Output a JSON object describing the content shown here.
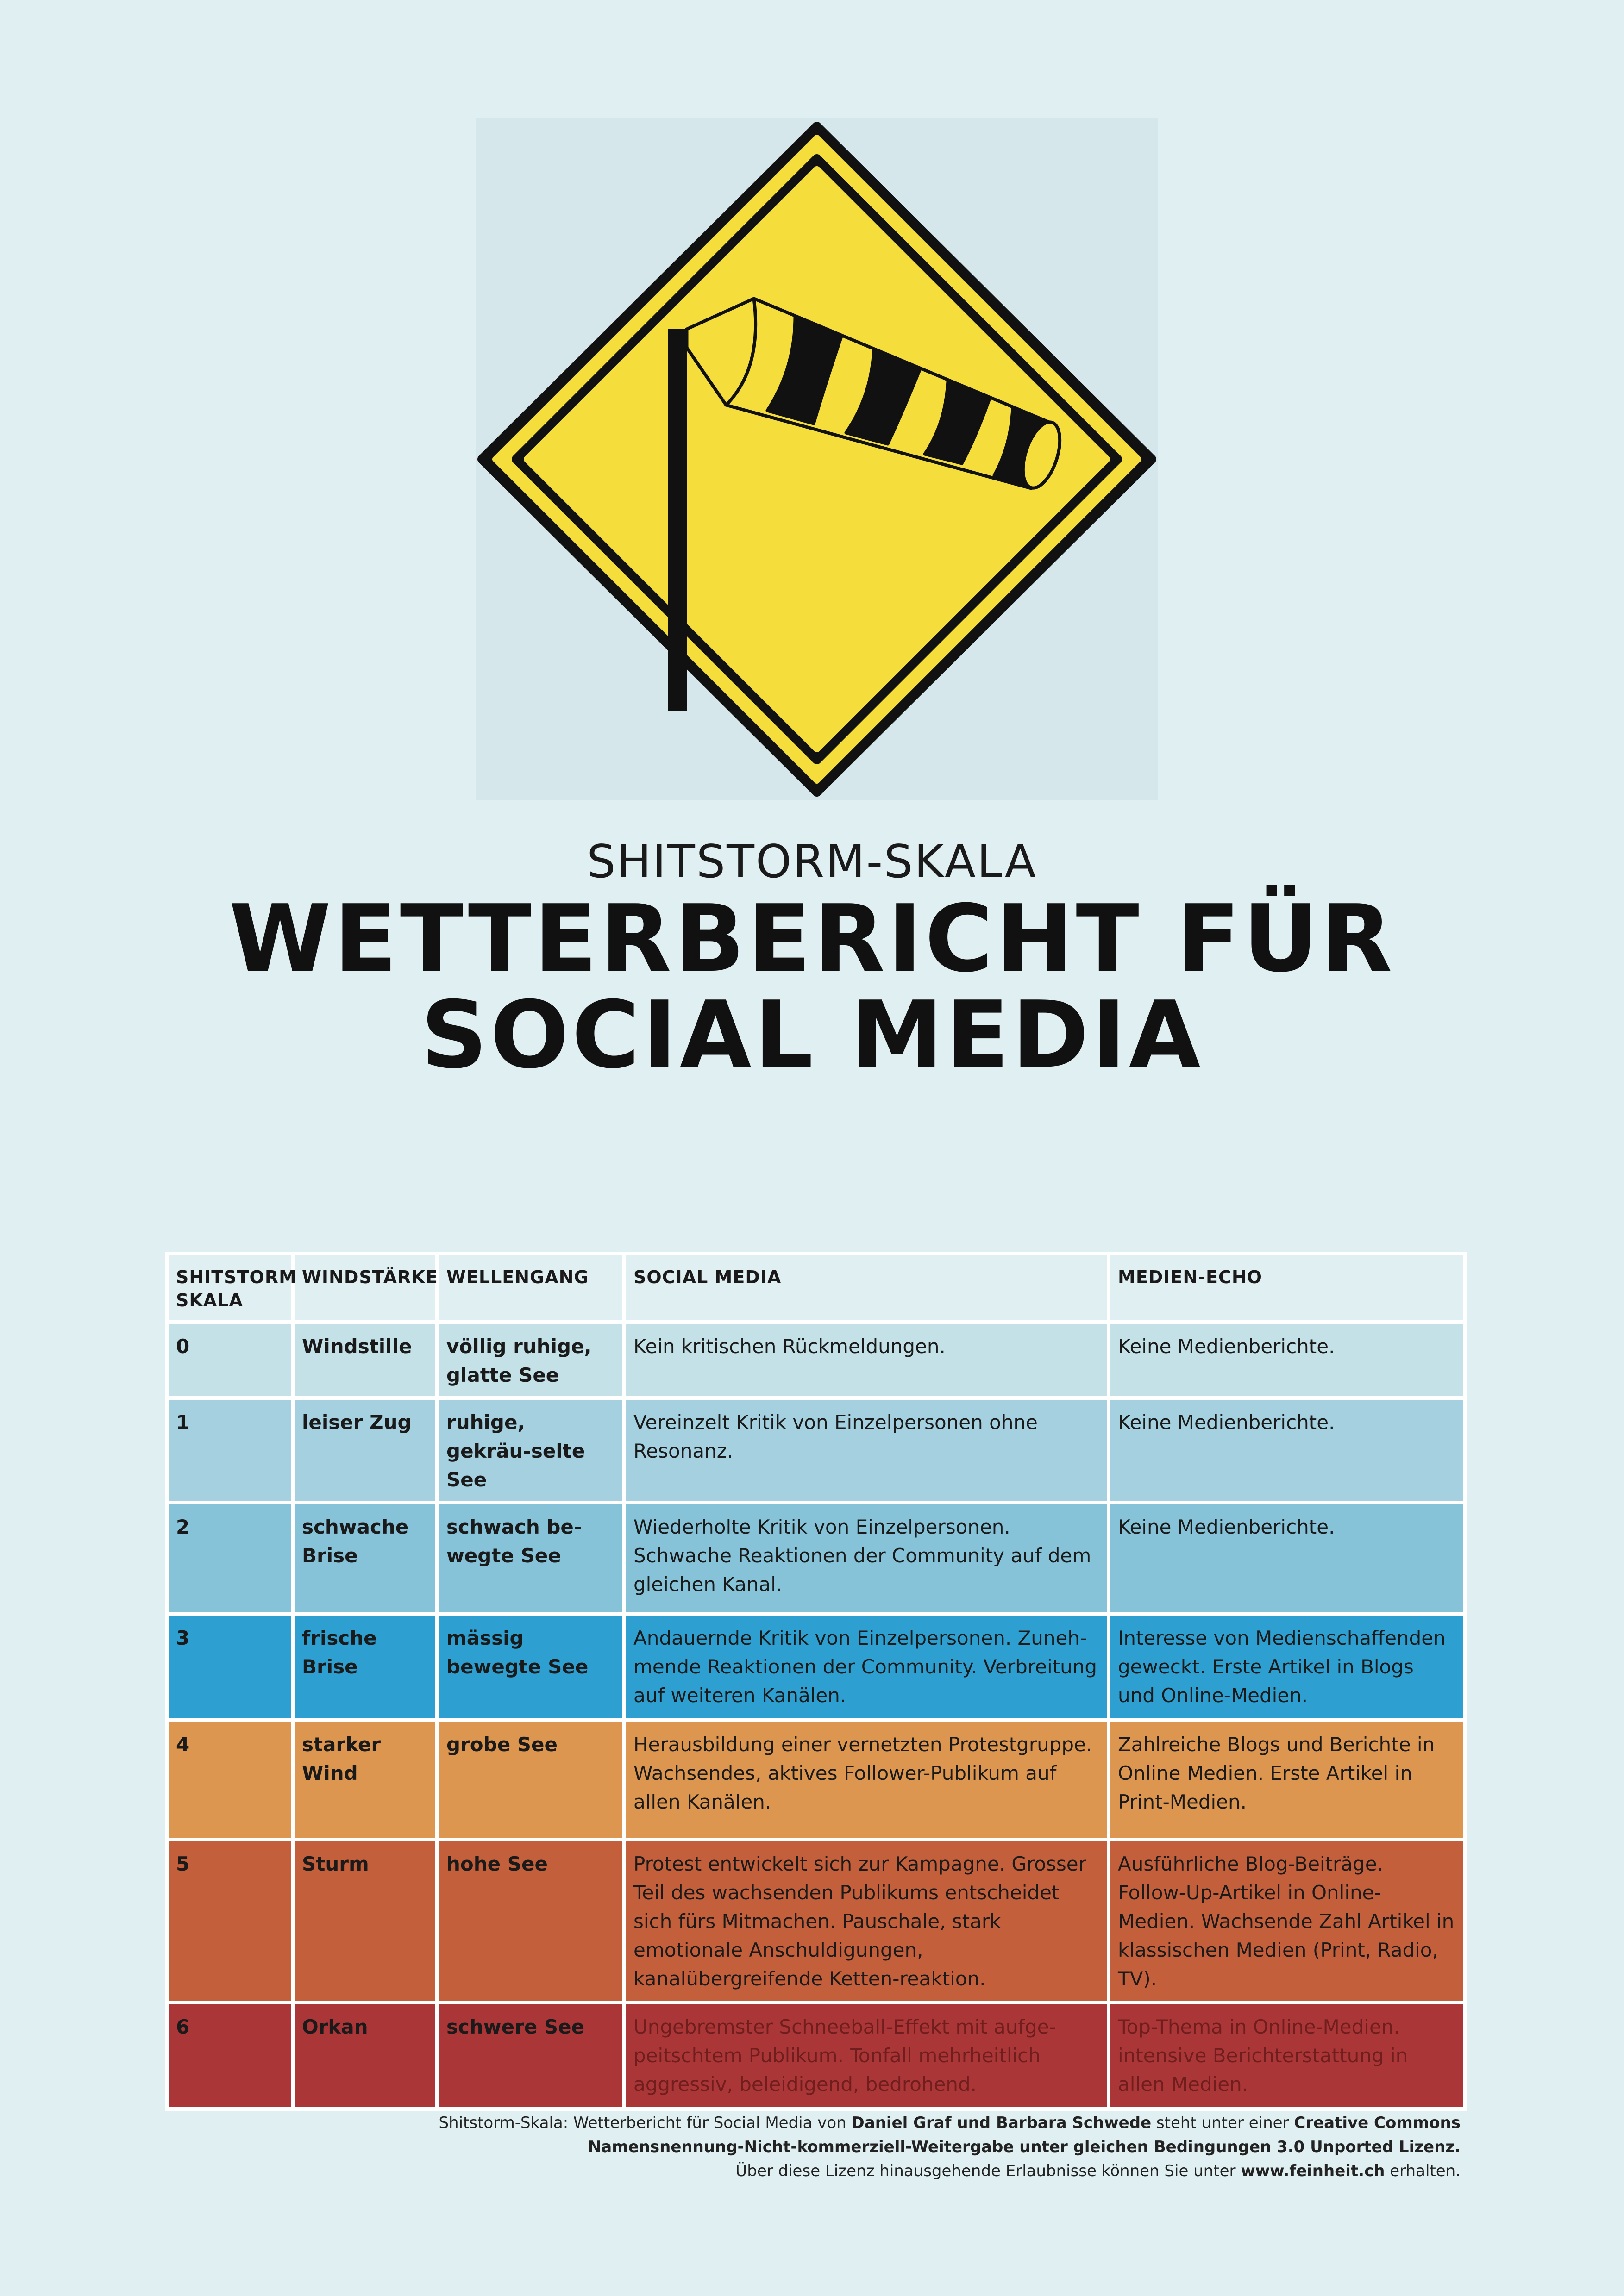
{
  "colors": {
    "background": "#e0eff1",
    "sign_yellow": "#f5dd3c",
    "level_0": "#c3e1e7",
    "level_1": "#a4d0df",
    "level_2": "#86c2d8",
    "level_3": "#2d9fd1",
    "level_4": "#dc964f",
    "level_5": "#c45f3b",
    "level_6": "#ab3637"
  },
  "sign": {
    "icon": "windsock-warning-sign-icon"
  },
  "header": {
    "subtitle": "SHITSTORM-SKALA",
    "title_line1": "WETTERBERICHT FÜR",
    "title_line2": "SOCIAL MEDIA"
  },
  "table": {
    "columns": {
      "scale_line1": "SHITSTORM",
      "scale_line2": "SKALA",
      "wind": "WINDSTÄRKE",
      "wave": "WELLENGANG",
      "social": "SOCIAL MEDIA",
      "media": "MEDIEN-ECHO"
    },
    "rows": [
      {
        "level": "0",
        "wind": "Windstille",
        "wave": "völlig ruhige, glatte See",
        "social": "Kein kritischen Rückmeldungen.",
        "media": "Keine Medienberichte."
      },
      {
        "level": "1",
        "wind": "leiser Zug",
        "wave": "ruhige, gekräu-selte See",
        "social": "Vereinzelt Kritik von Einzelpersonen ohne Resonanz.",
        "media": "Keine Medienberichte."
      },
      {
        "level": "2",
        "wind": "schwache Brise",
        "wave": "schwach be-wegte See",
        "social": "Wiederholte Kritik von Einzelpersonen. Schwache Reaktionen der Community auf dem gleichen Kanal.",
        "media": "Keine Medienberichte."
      },
      {
        "level": "3",
        "wind": "frische Brise",
        "wave": "mässig bewegte See",
        "social": "Andauernde Kritik von Einzelpersonen. Zuneh-mende Reaktionen der Community. Verbreitung auf weiteren Kanälen.",
        "media": "Interesse von Medienschaffenden geweckt. Erste Artikel in Blogs und Online-Medien."
      },
      {
        "level": "4",
        "wind": "starker Wind",
        "wave": "grobe See",
        "social": "Herausbildung einer vernetzten Protestgruppe. Wachsendes, aktives Follower-Publikum auf allen Kanälen.",
        "media": "Zahlreiche Blogs und Berichte in Online Medien. Erste Artikel in Print-Medien."
      },
      {
        "level": "5",
        "wind": "Sturm",
        "wave": "hohe See",
        "social": "Protest entwickelt sich zur Kampagne. Grosser Teil des wachsenden Publikums entscheidet sich fürs Mitmachen. Pauschale, stark emotionale Anschuldigungen, kanalübergreifende Ketten-reaktion.",
        "media": "Ausführliche Blog-Beiträge. Follow-Up-Artikel in Online-Medien. Wachsende Zahl Artikel in klassischen Medien (Print, Radio, TV)."
      },
      {
        "level": "6",
        "wind": "Orkan",
        "wave": "schwere See",
        "social": "Ungebremster Schneeball-Effekt mit aufge-peitschtem Publikum. Tonfall mehrheitlich aggressiv, beleidigend, bedrohend.",
        "media": "Top-Thema in Online-Medien. intensive Berichterstattung in allen Medien."
      }
    ]
  },
  "credits": {
    "p1": "Shitstorm-Skala: Wetterbericht für Social Media von ",
    "authors": "Daniel Graf und Barbara Schwede",
    "p2": " steht unter einer ",
    "license": "Creative Commons Namensnennung-Nicht-kommerziell-Weitergabe unter gleichen Bedingungen 3.0 Unported Lizenz.",
    "p3": "Über diese Lizenz hinausgehende Erlaubnisse können Sie unter ",
    "site": "www.feinheit.ch",
    "p4": " erhalten."
  }
}
